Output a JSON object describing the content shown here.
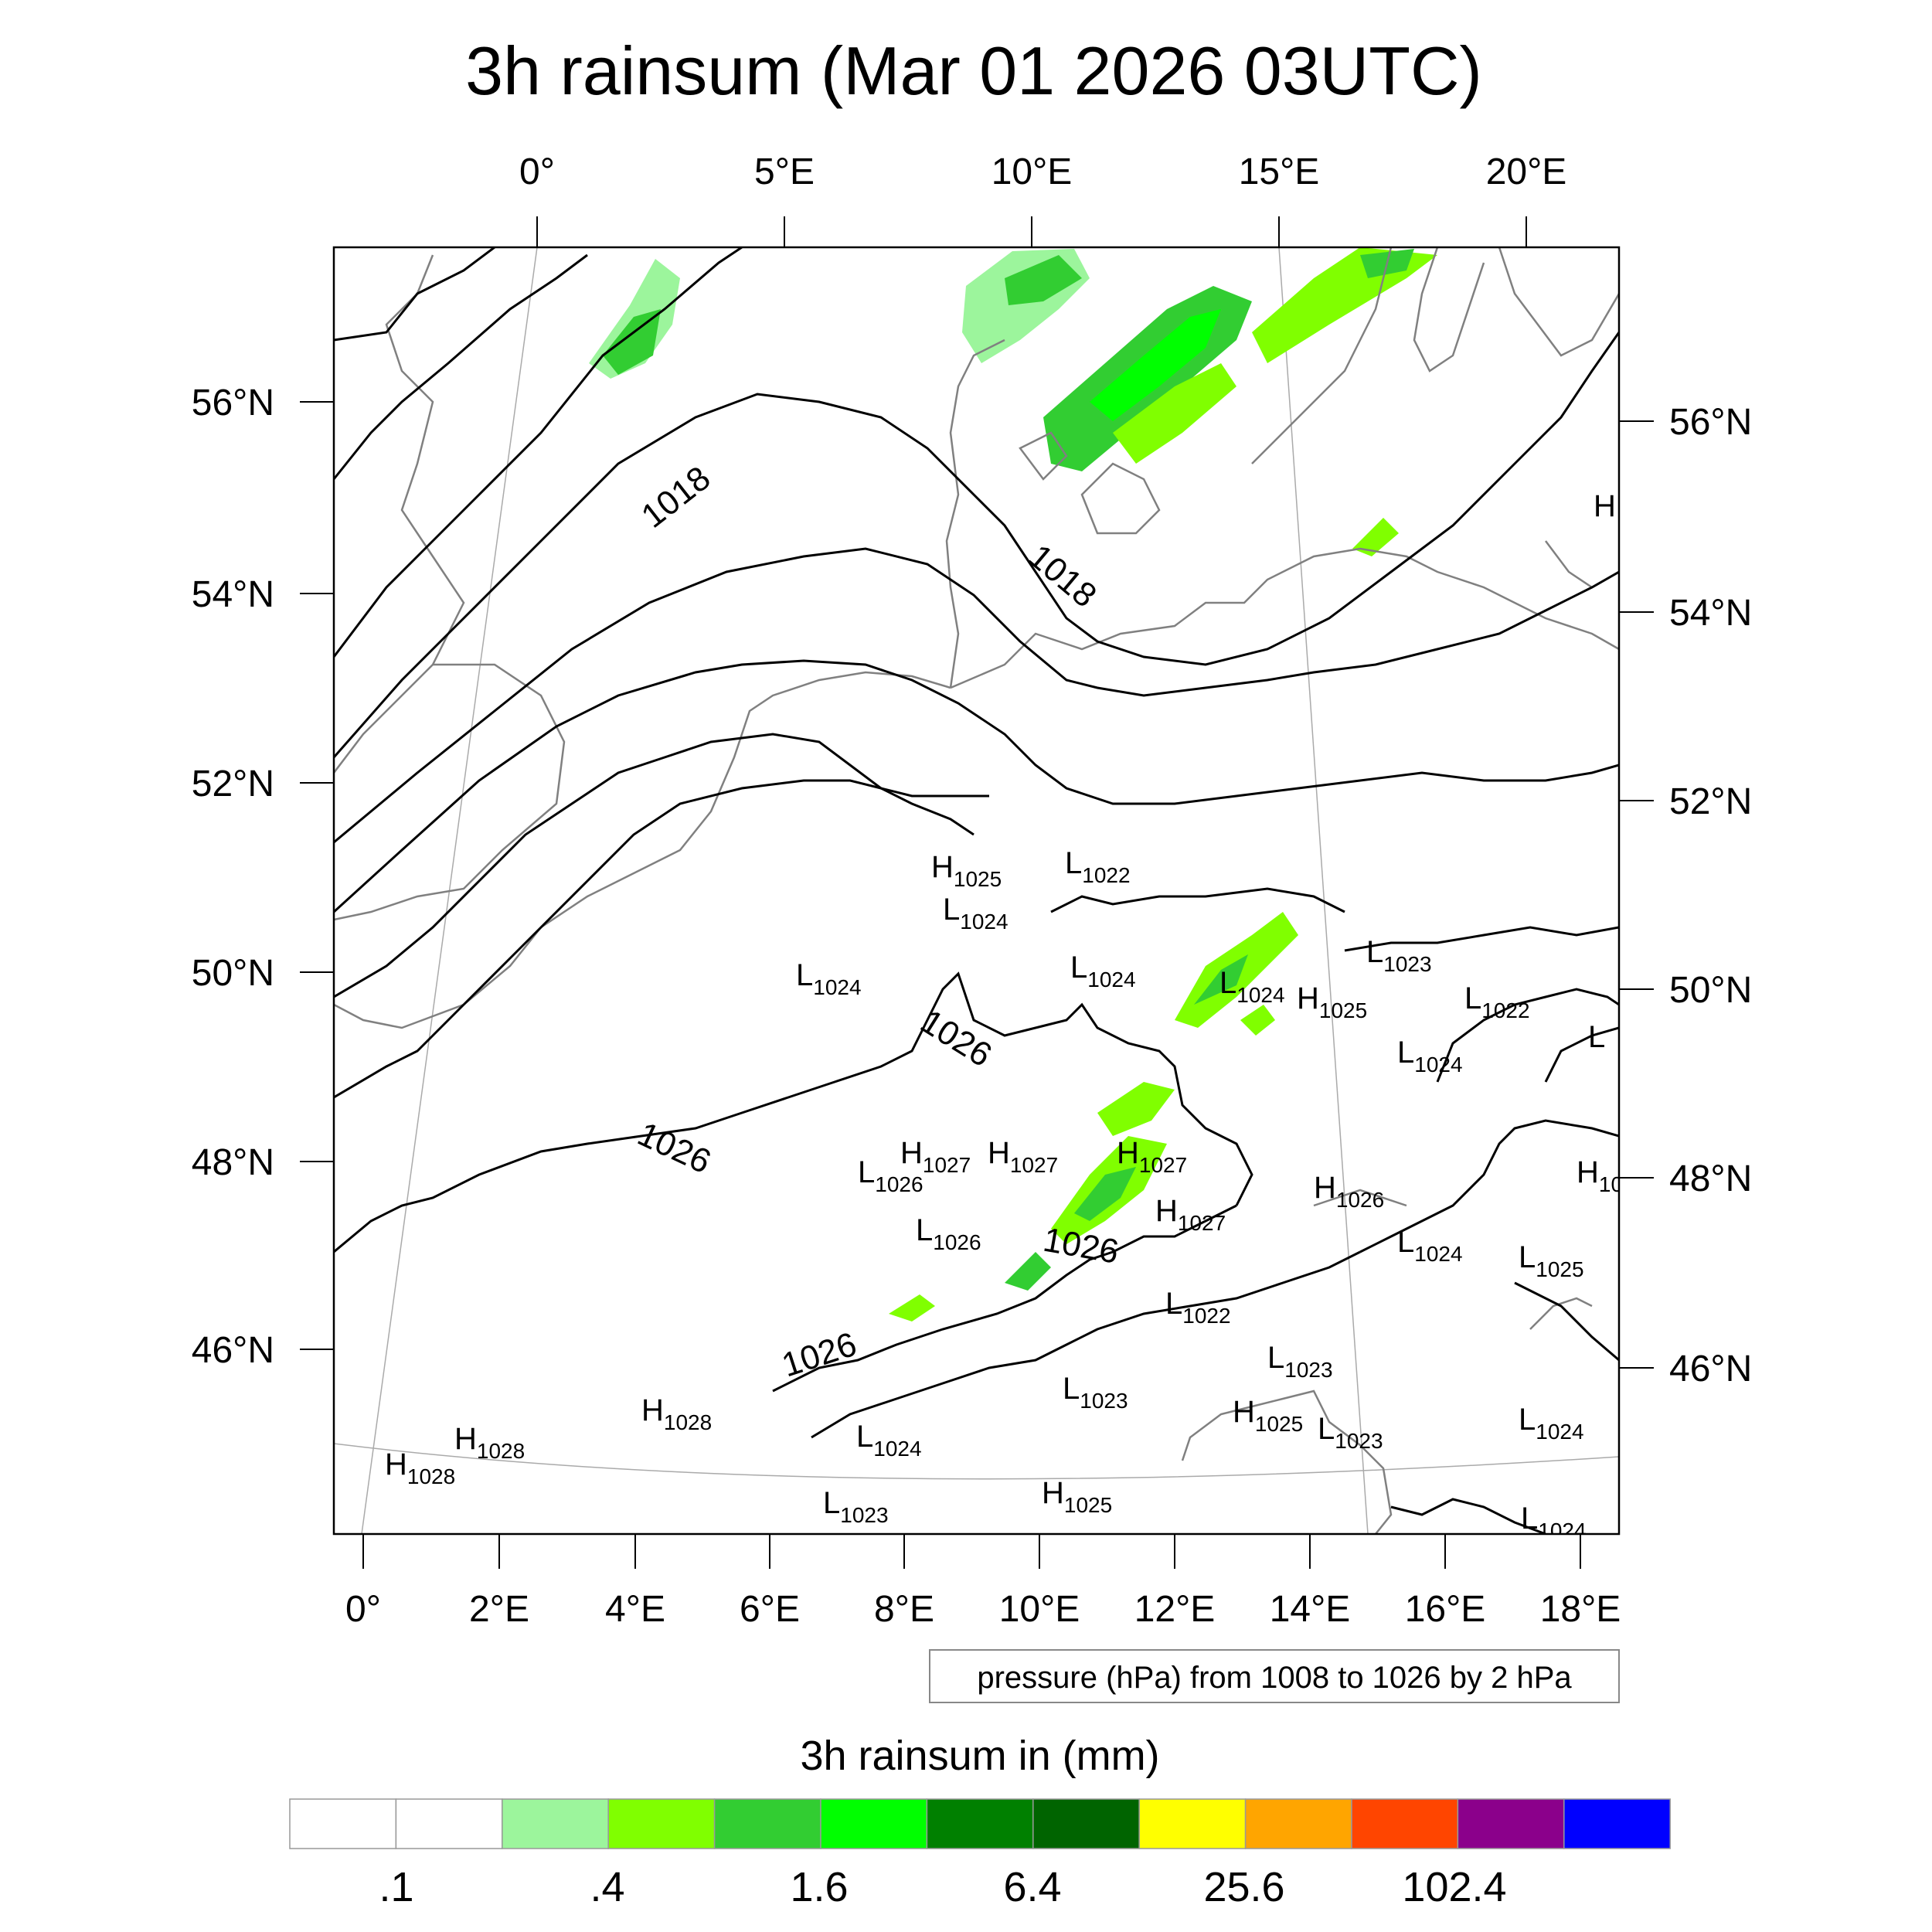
{
  "title": "3h rainsum (Mar 01 2026 03UTC)",
  "top_lon_labels": [
    "0°",
    "5°E",
    "10°E",
    "15°E",
    "20°E"
  ],
  "bottom_lon_labels": [
    "0°",
    "2°E",
    "4°E",
    "6°E",
    "8°E",
    "10°E",
    "12°E",
    "14°E",
    "16°E",
    "18°E"
  ],
  "left_lat_labels": [
    "56°N",
    "54°N",
    "52°N",
    "50°N",
    "48°N",
    "46°N"
  ],
  "right_lat_labels": [
    "56°N",
    "54°N",
    "52°N",
    "50°N",
    "48°N",
    "46°N"
  ],
  "pressure_note": "pressure (hPa) from 1008 to 1026 by 2 hPa",
  "isobar_labels": [
    "1018",
    "1018",
    "1026",
    "1026",
    "1026",
    "1026"
  ],
  "pressure_centers": [
    {
      "t": "H",
      "v": "1025"
    },
    {
      "t": "L",
      "v": "1022"
    },
    {
      "t": "L",
      "v": "1024"
    },
    {
      "t": "L",
      "v": "1024"
    },
    {
      "t": "L",
      "v": "1024"
    },
    {
      "t": "L",
      "v": "1024"
    },
    {
      "t": "H",
      "v": "1025"
    },
    {
      "t": "L",
      "v": "1023"
    },
    {
      "t": "L",
      "v": "1022"
    },
    {
      "t": "L",
      "v": "1024"
    },
    {
      "t": "L",
      "v": ""
    },
    {
      "t": "H",
      "v": "1027"
    },
    {
      "t": "H",
      "v": "1027"
    },
    {
      "t": "H",
      "v": "1027"
    },
    {
      "t": "L",
      "v": "1026"
    },
    {
      "t": "H",
      "v": "1026"
    },
    {
      "t": "H",
      "v": "10"
    },
    {
      "t": "H",
      "v": "1027"
    },
    {
      "t": "L",
      "v": "1026"
    },
    {
      "t": "L",
      "v": "1024"
    },
    {
      "t": "L",
      "v": "1025"
    },
    {
      "t": "L",
      "v": "1022"
    },
    {
      "t": "L",
      "v": "1023"
    },
    {
      "t": "H",
      "v": "1028"
    },
    {
      "t": "L",
      "v": "1023"
    },
    {
      "t": "H",
      "v": "1025"
    },
    {
      "t": "L",
      "v": "1023"
    },
    {
      "t": "L",
      "v": "1024"
    },
    {
      "t": "H",
      "v": "1028"
    },
    {
      "t": "L",
      "v": "1024"
    },
    {
      "t": "H",
      "v": "1028"
    },
    {
      "t": "L",
      "v": "1023"
    },
    {
      "t": "H",
      "v": "1025"
    },
    {
      "t": "L",
      "v": "1024"
    },
    {
      "t": "H",
      "v": ""
    }
  ],
  "colorbar": {
    "title": "3h rainsum in (mm)",
    "colors": [
      "#ffffff",
      "#ffffff",
      "#9cf59c",
      "#80ff00",
      "#32cd32",
      "#00ff00",
      "#008000",
      "#006400",
      "#ffff00",
      "#ffa500",
      "#ff4500",
      "#8b008b",
      "#0000ff"
    ],
    "tick_labels": [
      ".1",
      ".4",
      "1.6",
      "6.4",
      "25.6",
      "102.4"
    ]
  },
  "colors": {
    "isobar": "#000000",
    "coast": "#808080",
    "frame": "#000000"
  }
}
